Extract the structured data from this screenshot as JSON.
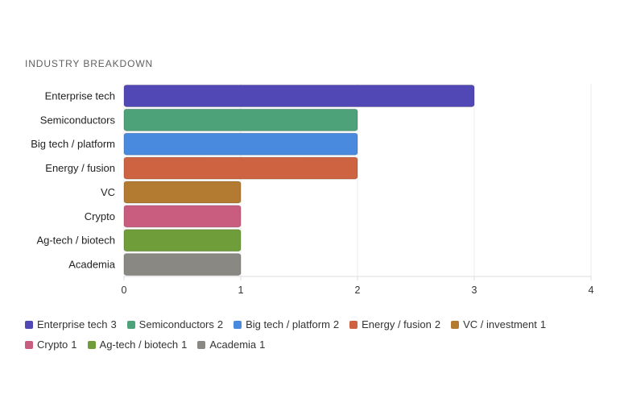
{
  "header": {
    "title": "INDUSTRY BREAKDOWN"
  },
  "chart_data": {
    "type": "bar",
    "orientation": "horizontal",
    "title": "INDUSTRY BREAKDOWN",
    "xlabel": "",
    "ylabel": "",
    "xlim": [
      0,
      4
    ],
    "x_ticks": [
      "0",
      "1",
      "2",
      "3",
      "4"
    ],
    "grid": true,
    "legend_position": "bottom",
    "categories": [
      "Enterprise tech",
      "Semiconductors",
      "Big tech / platform",
      "Energy / fusion",
      "VC",
      "Crypto",
      "Ag-tech / biotech",
      "Academia"
    ],
    "values": [
      3,
      2,
      2,
      2,
      1,
      1,
      1,
      1
    ],
    "colors": [
      "#5248b5",
      "#4ea27a",
      "#4a8ade",
      "#cd6340",
      "#b37a31",
      "#c95d80",
      "#6f9d39",
      "#8a8882"
    ]
  },
  "legend": {
    "items": [
      {
        "label": "Enterprise tech",
        "value": "3",
        "color": "#5248b5"
      },
      {
        "label": "Semiconductors",
        "value": "2",
        "color": "#4ea27a"
      },
      {
        "label": "Big tech / platform",
        "value": "2",
        "color": "#4a8ade"
      },
      {
        "label": "Energy / fusion",
        "value": "2",
        "color": "#cd6340"
      },
      {
        "label": "VC / investment",
        "value": "1",
        "color": "#b37a31"
      },
      {
        "label": "Crypto",
        "value": "1",
        "color": "#c95d80"
      },
      {
        "label": "Ag-tech / biotech",
        "value": "1",
        "color": "#6f9d39"
      },
      {
        "label": "Academia",
        "value": "1",
        "color": "#8a8882"
      }
    ]
  }
}
